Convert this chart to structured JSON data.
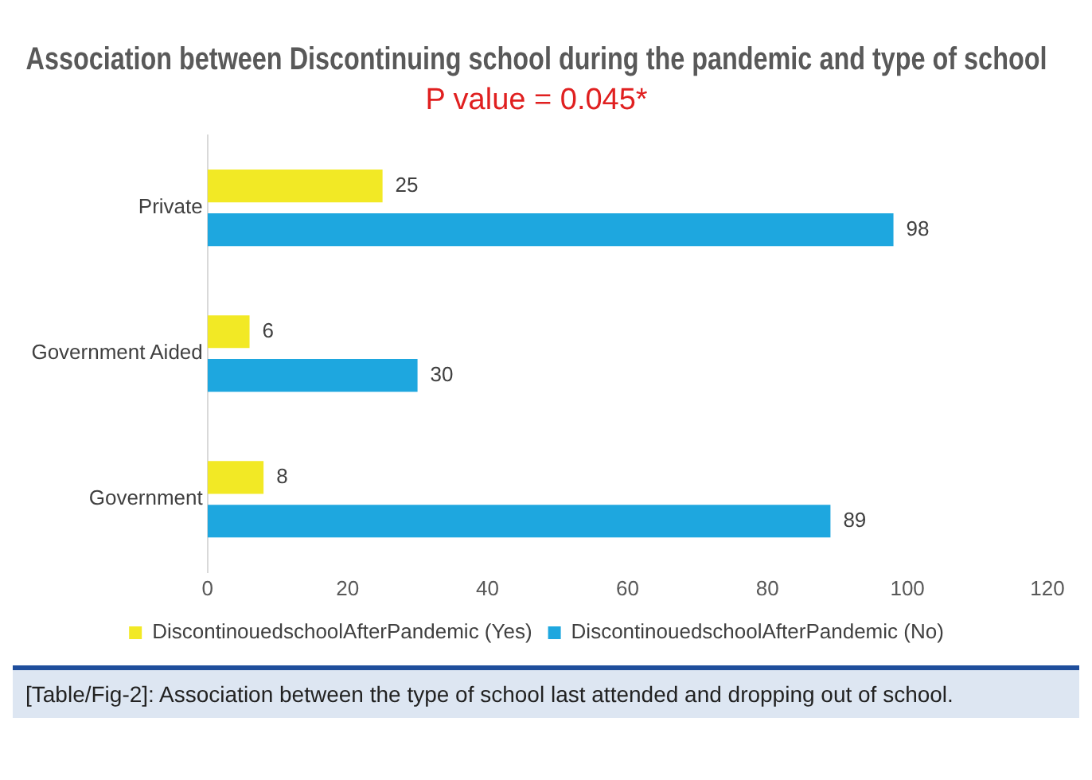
{
  "chart_data": {
    "type": "bar",
    "orientation": "horizontal",
    "title": "Association between Discontinuing school during the pandemic and type of school",
    "subtitle": "P value = 0.045*",
    "categories": [
      "Private",
      "Government Aided",
      "Government"
    ],
    "series": [
      {
        "name": "DiscontinouedschoolAfterPandemic (Yes)",
        "color": "#f2e925",
        "values": [
          25,
          6,
          8
        ]
      },
      {
        "name": "DiscontinouedschoolAfterPandemic (No)",
        "color": "#1ea7df",
        "values": [
          98,
          30,
          89
        ]
      }
    ],
    "xlim": [
      0,
      120
    ],
    "xticks": [
      0,
      20,
      40,
      60,
      80,
      100,
      120
    ],
    "grid": false,
    "legend": "bottom",
    "data_labels": true,
    "annotations": [
      "[Table/Fig-2]: Association between the type of school last attended and dropping out of school."
    ]
  }
}
